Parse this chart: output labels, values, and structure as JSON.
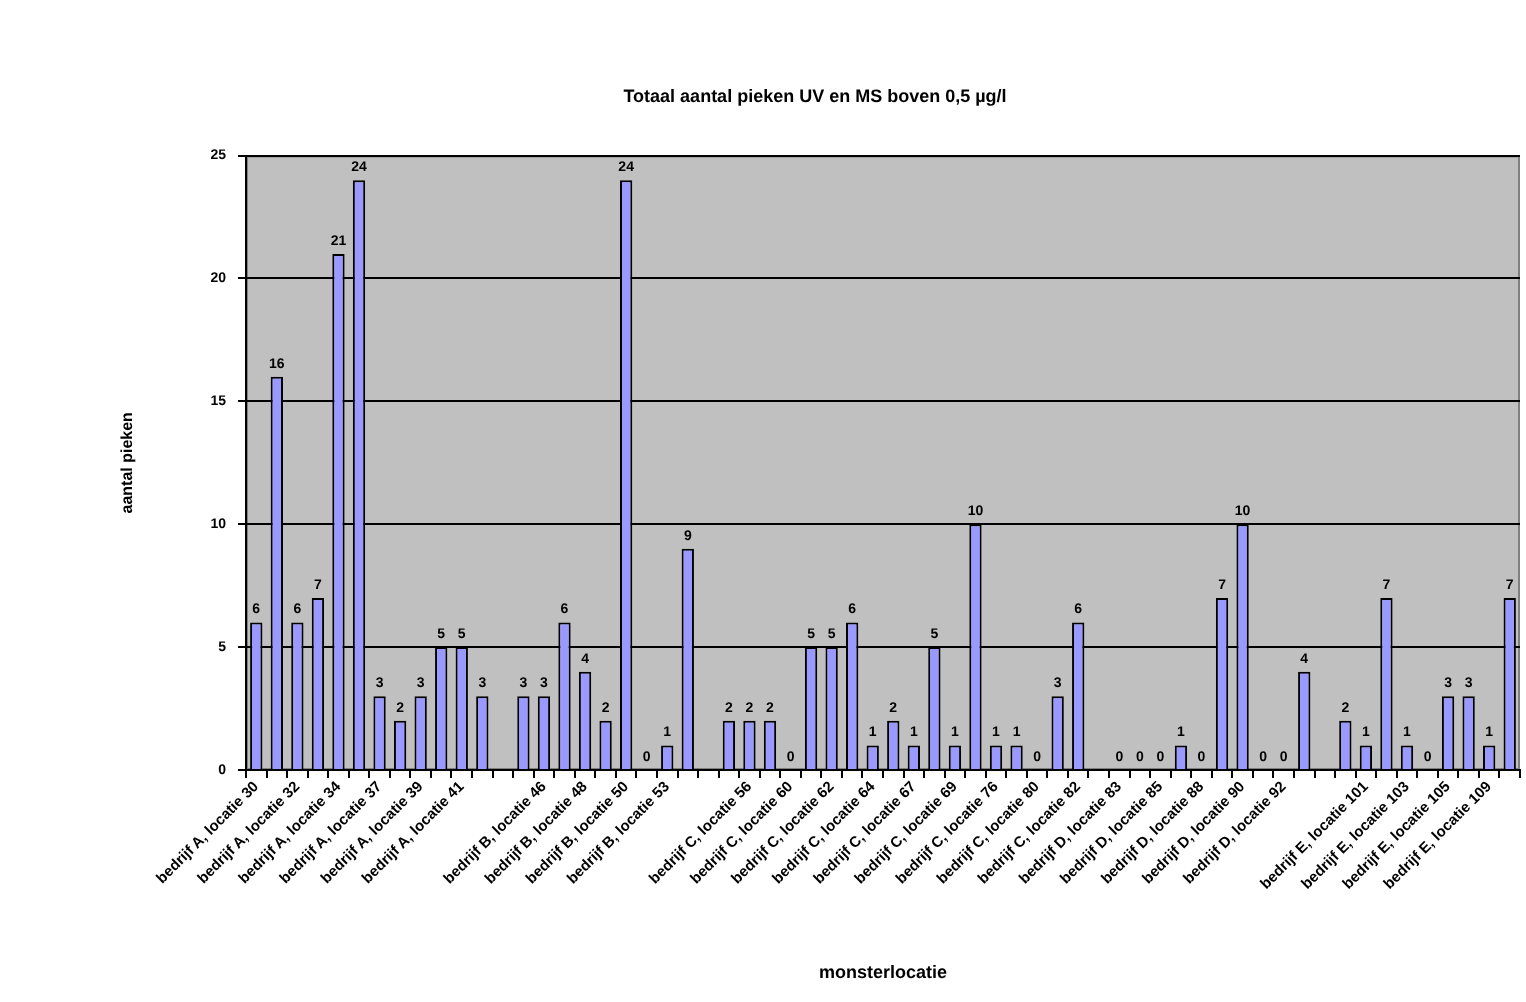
{
  "chart_data": {
    "type": "bar",
    "title": "Totaal aantal pieken UV en MS boven 0,5 µg/l",
    "xlabel": "monsterlocatie",
    "ylabel": "aantal pieken",
    "categories": [
      "bedrijf A, locatie 30",
      null,
      "bedrijf A, locatie 32",
      null,
      "bedrijf A, locatie 34",
      null,
      "bedrijf A, locatie 37",
      null,
      "bedrijf A, locatie 39",
      null,
      "bedrijf A, locatie 41",
      null,
      null,
      null,
      "bedrijf B, locatie 46",
      null,
      "bedrijf B, locatie 48",
      null,
      "bedrijf B, locatie 50",
      null,
      "bedrijf B, locatie 53",
      null,
      null,
      null,
      "bedrijf C, locatie 56",
      null,
      "bedrijf C, locatie 60",
      null,
      "bedrijf C, locatie 62",
      null,
      "bedrijf C, locatie 64",
      null,
      "bedrijf C, locatie 67",
      null,
      "bedrijf C, locatie 69",
      null,
      "bedrijf C, locatie 76",
      null,
      "bedrijf C, locatie 80",
      null,
      "bedrijf C, locatie 82",
      null,
      "bedrijf D, locatie 83",
      null,
      "bedrijf D, locatie 85",
      null,
      "bedrijf D, locatie 88",
      null,
      "bedrijf D, locatie 90",
      null,
      "bedrijf D, locatie 92",
      null,
      null,
      null,
      "bedrijf E, locatie 101",
      null,
      "bedrijf E, locatie 103",
      null,
      "bedrijf E, locatie 105",
      null,
      "bedrijf E, locatie 109",
      null
    ],
    "values": [
      6,
      16,
      6,
      7,
      21,
      24,
      3,
      2,
      3,
      5,
      5,
      3,
      null,
      3,
      3,
      6,
      4,
      2,
      24,
      0,
      1,
      9,
      null,
      2,
      2,
      2,
      0,
      5,
      5,
      6,
      1,
      2,
      1,
      5,
      1,
      10,
      1,
      1,
      0,
      3,
      6,
      null,
      0,
      0,
      0,
      1,
      0,
      7,
      10,
      0,
      0,
      4,
      null,
      2,
      1,
      7,
      1,
      0,
      3,
      3,
      1,
      7
    ],
    "color": "#9999ff",
    "ylim": [
      0,
      25
    ],
    "yticks": [
      0,
      5,
      10,
      15,
      20,
      25
    ],
    "grid": "y",
    "data_labels": true
  }
}
